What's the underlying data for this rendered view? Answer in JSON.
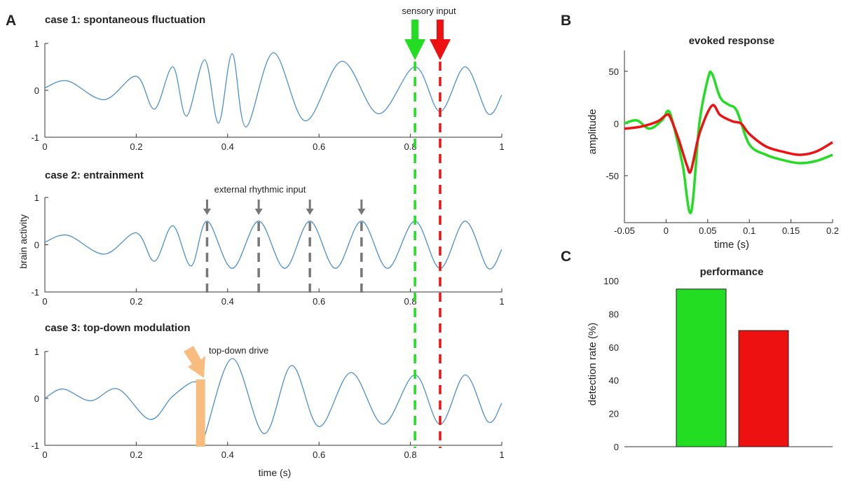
{
  "panel_labels": {
    "a": "A",
    "b": "B",
    "c": "C"
  },
  "colors": {
    "trace": "#4d8fc7",
    "green": "#22dd22",
    "red": "#ee1111",
    "gray_marker": "#777777",
    "orange": "#f7bc7e",
    "axis": "#333333"
  },
  "panel_a": {
    "x_ticks": [
      "0",
      "0.2",
      "0.4",
      "0.6",
      "0.8",
      "1"
    ],
    "y_ticks": [
      "-1",
      "0",
      "1"
    ],
    "ylabel": "brain activity",
    "xlabel": "time (s)",
    "sensory_input_label": "sensory input",
    "stim_times": {
      "green": 0.81,
      "red": 0.865
    }
  },
  "chart_data": [
    {
      "type": "line",
      "panel": "A (top)",
      "title": "case 1: spontaneous fluctuation",
      "xlim": [
        0,
        1
      ],
      "ylim": [
        -1,
        1
      ],
      "x": [
        0,
        0.05,
        0.13,
        0.2,
        0.24,
        0.28,
        0.31,
        0.35,
        0.38,
        0.41,
        0.44,
        0.5,
        0.57,
        0.65,
        0.73,
        0.81,
        0.865,
        0.92,
        0.97,
        1.0
      ],
      "y": [
        0.05,
        0.2,
        -0.2,
        0.3,
        -0.4,
        0.5,
        -0.55,
        0.65,
        -0.7,
        0.78,
        -0.78,
        0.8,
        -0.65,
        0.62,
        -0.5,
        0.5,
        -0.45,
        0.5,
        -0.5,
        -0.1
      ],
      "annotations": [
        "sensory input"
      ]
    },
    {
      "type": "line",
      "panel": "A (middle)",
      "title": "case 2: entrainment",
      "xlim": [
        0,
        1
      ],
      "ylim": [
        -1,
        1
      ],
      "x": [
        0,
        0.05,
        0.13,
        0.2,
        0.24,
        0.28,
        0.32,
        0.355,
        0.41,
        0.468,
        0.525,
        0.58,
        0.636,
        0.693,
        0.75,
        0.81,
        0.865,
        0.92,
        0.97,
        1.0
      ],
      "y": [
        0.05,
        0.2,
        -0.2,
        0.25,
        -0.35,
        0.4,
        -0.45,
        0.5,
        -0.5,
        0.5,
        -0.5,
        0.5,
        -0.5,
        0.5,
        -0.5,
        0.5,
        -0.5,
        0.5,
        -0.5,
        -0.1
      ],
      "marker_times": [
        0.355,
        0.468,
        0.58,
        0.693
      ],
      "annotations": [
        "external rhythmic input"
      ]
    },
    {
      "type": "line",
      "panel": "A (bottom)",
      "title": "case 3: top-down modulation",
      "xlim": [
        0,
        1
      ],
      "ylim": [
        -1,
        1
      ],
      "x": [
        0,
        0.04,
        0.1,
        0.16,
        0.23,
        0.28,
        0.33,
        0.335,
        0.345,
        0.41,
        0.48,
        0.54,
        0.6,
        0.67,
        0.74,
        0.81,
        0.865,
        0.92,
        0.97,
        1.0
      ],
      "y": [
        0.0,
        0.2,
        -0.05,
        0.2,
        -0.45,
        0.05,
        0.35,
        -0.2,
        -0.9,
        0.85,
        -0.75,
        0.7,
        -0.6,
        0.55,
        -0.55,
        0.5,
        -0.55,
        0.5,
        -0.5,
        -0.1
      ],
      "drive_time": 0.34,
      "annotations": [
        "top-down drive"
      ]
    },
    {
      "type": "line",
      "panel": "B",
      "title": "evoked response",
      "xlabel": "time (s)",
      "ylabel": "amplitude",
      "xlim": [
        -0.05,
        0.2
      ],
      "ylim": [
        -95,
        70
      ],
      "x_ticks": [
        "-0.05",
        "0",
        "0.05",
        "0.1",
        "0.15",
        "0.2"
      ],
      "y_ticks": [
        "50",
        "0",
        "-50"
      ],
      "series": [
        {
          "color": "#22dd22",
          "x": [
            -0.05,
            -0.035,
            -0.02,
            -0.005,
            0.003,
            0.01,
            0.02,
            0.03,
            0.04,
            0.05,
            0.055,
            0.065,
            0.075,
            0.085,
            0.1,
            0.12,
            0.14,
            0.16,
            0.18,
            0.2
          ],
          "y": [
            0,
            3,
            -5,
            3,
            12,
            -5,
            -40,
            -85,
            0,
            42,
            48,
            25,
            18,
            12,
            -20,
            -30,
            -35,
            -38,
            -36,
            -30
          ]
        },
        {
          "color": "#ee1111",
          "x": [
            -0.05,
            -0.03,
            -0.01,
            0.0,
            0.005,
            0.015,
            0.025,
            0.03,
            0.04,
            0.055,
            0.065,
            0.08,
            0.09,
            0.1,
            0.12,
            0.14,
            0.16,
            0.18,
            0.2
          ],
          "y": [
            -5,
            -3,
            2,
            8,
            6,
            -15,
            -40,
            -45,
            -10,
            17,
            8,
            2,
            0,
            -10,
            -22,
            -27,
            -30,
            -27,
            -18
          ]
        }
      ]
    },
    {
      "type": "bar",
      "panel": "C",
      "title": "performance",
      "ylabel": "detection rate (%)",
      "ylim": [
        0,
        100
      ],
      "y_ticks": [
        "100",
        "80",
        "60",
        "40",
        "20",
        "0"
      ],
      "values": [
        95,
        70
      ],
      "colors": [
        "#22dd22",
        "#ee1111"
      ]
    }
  ]
}
